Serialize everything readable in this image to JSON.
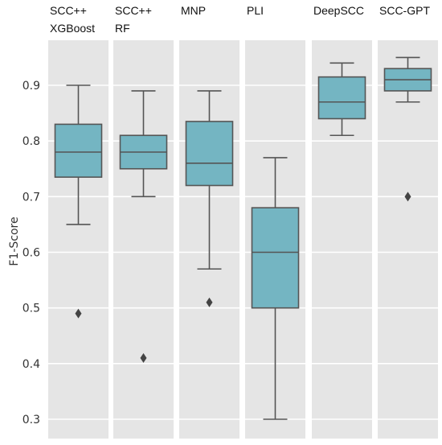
{
  "chart_data": {
    "type": "boxplot",
    "ylabel": "F1-Score",
    "xlabel": "",
    "ylim": [
      0.28,
      0.98
    ],
    "y_ticks": [
      "0.3",
      "0.4",
      "0.5",
      "0.6",
      "0.7",
      "0.8",
      "0.9"
    ],
    "grid": true,
    "box_color": "#74b5c2",
    "panel_color": "#e5e5e5",
    "facets": [
      {
        "title_lines": [
          "SCC++",
          "XGBoost"
        ],
        "whisker_low": 0.65,
        "q1": 0.735,
        "median": 0.78,
        "q3": 0.83,
        "whisker_high": 0.9,
        "outliers": [
          0.49
        ]
      },
      {
        "title_lines": [
          "SCC++",
          "RF"
        ],
        "whisker_low": 0.7,
        "q1": 0.75,
        "median": 0.78,
        "q3": 0.81,
        "whisker_high": 0.89,
        "outliers": [
          0.41
        ]
      },
      {
        "title_lines": [
          "MNP"
        ],
        "whisker_low": 0.57,
        "q1": 0.72,
        "median": 0.76,
        "q3": 0.835,
        "whisker_high": 0.89,
        "outliers": [
          0.51
        ]
      },
      {
        "title_lines": [
          "PLI"
        ],
        "whisker_low": 0.3,
        "q1": 0.5,
        "median": 0.6,
        "q3": 0.68,
        "whisker_high": 0.77,
        "outliers": []
      },
      {
        "title_lines": [
          "DeepSCC"
        ],
        "whisker_low": 0.81,
        "q1": 0.84,
        "median": 0.87,
        "q3": 0.915,
        "whisker_high": 0.94,
        "outliers": []
      },
      {
        "title_lines": [
          "SCC-GPT"
        ],
        "whisker_low": 0.87,
        "q1": 0.89,
        "median": 0.91,
        "q3": 0.93,
        "whisker_high": 0.95,
        "outliers": [
          0.7
        ]
      }
    ]
  }
}
